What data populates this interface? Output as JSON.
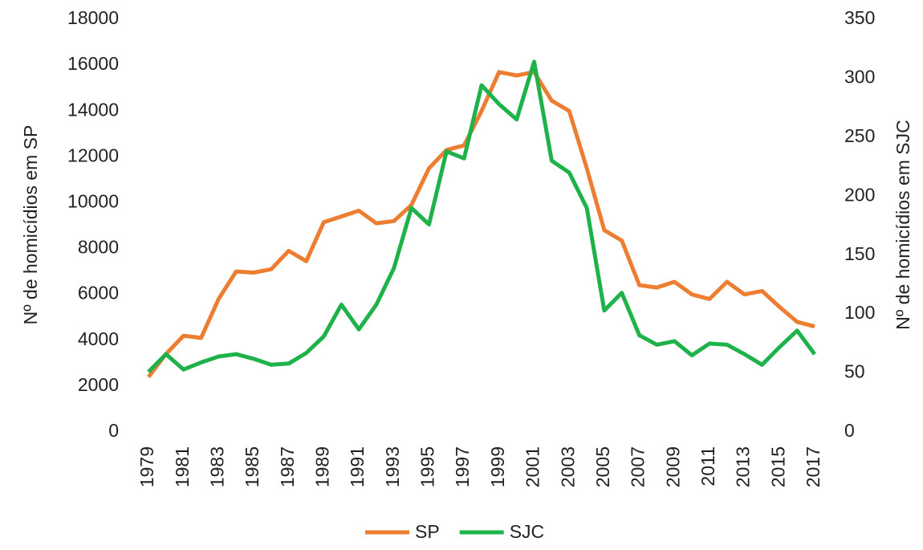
{
  "chart_data": {
    "type": "line",
    "categories": [
      "1979",
      null,
      "1981",
      null,
      "1983",
      null,
      "1985",
      null,
      "1987",
      null,
      "1989",
      null,
      "1991",
      null,
      "1993",
      null,
      "1995",
      null,
      "1997",
      null,
      "1999",
      null,
      "2001",
      null,
      "2003",
      null,
      "2005",
      null,
      "2007",
      null,
      "2009",
      null,
      "2011",
      null,
      "2013",
      null,
      "2015",
      null,
      "2017"
    ],
    "y_label": "Nº de homicídios em SP",
    "y2_label": "Nº de homicídios em SJC",
    "ylim": [
      0,
      18000
    ],
    "yticks": [
      0,
      2000,
      4000,
      6000,
      8000,
      10000,
      12000,
      14000,
      16000,
      18000
    ],
    "y2lim": [
      0,
      350
    ],
    "y2ticks": [
      0,
      50,
      100,
      150,
      200,
      250,
      300,
      350
    ],
    "grid": false,
    "legend": "bottom",
    "series": [
      {
        "name": "SP",
        "color": "#ed7d31",
        "values": [
          2400,
          3400,
          4200,
          4100,
          5800,
          7000,
          6950,
          7100,
          7900,
          7450,
          9150,
          9400,
          9650,
          9100,
          9200,
          9900,
          11500,
          12300,
          12500,
          14000,
          15700,
          15550,
          15700,
          14450,
          14000,
          11500,
          8800,
          8350,
          6400,
          6300,
          6550,
          6000,
          5800,
          6550,
          6000,
          6150,
          5450,
          4800,
          4600
        ]
      },
      {
        "name": "SJC",
        "color": "#1fb24a",
        "axis": "y2",
        "values": [
          51,
          66,
          53,
          59,
          64,
          66,
          62,
          57,
          58,
          67,
          81,
          108,
          87,
          108,
          139,
          190,
          176,
          238,
          232,
          294,
          278,
          265,
          314,
          230,
          220,
          190,
          103,
          118,
          82,
          74,
          77,
          65,
          75,
          74,
          66,
          57,
          72,
          86,
          66
        ]
      }
    ]
  }
}
